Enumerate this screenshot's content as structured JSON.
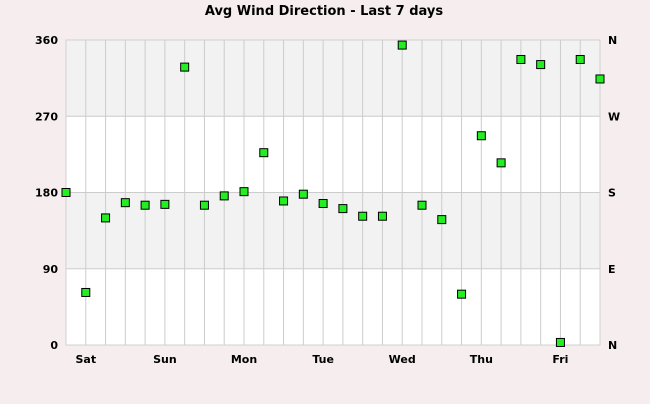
{
  "chart_data": {
    "type": "scatter",
    "title": "Avg Wind Direction - Last 7 days",
    "xlabel": "",
    "ylabel": "",
    "ylim": [
      0,
      360
    ],
    "y_ticks_left": [
      "0",
      "90",
      "180",
      "270",
      "360"
    ],
    "y_ticks_right": [
      "N",
      "E",
      "S",
      "W",
      "N"
    ],
    "x_tick_labels": [
      "Sat",
      "Sun",
      "Mon",
      "Tue",
      "Wed",
      "Thu",
      "Fri"
    ],
    "grid": true,
    "points": [
      {
        "x": 0,
        "y": 180
      },
      {
        "x": 1,
        "y": 62
      },
      {
        "x": 2,
        "y": 150
      },
      {
        "x": 3,
        "y": 168
      },
      {
        "x": 4,
        "y": 165
      },
      {
        "x": 5,
        "y": 166
      },
      {
        "x": 6,
        "y": 328
      },
      {
        "x": 7,
        "y": 165
      },
      {
        "x": 8,
        "y": 176
      },
      {
        "x": 9,
        "y": 181
      },
      {
        "x": 10,
        "y": 227
      },
      {
        "x": 11,
        "y": 170
      },
      {
        "x": 12,
        "y": 178
      },
      {
        "x": 13,
        "y": 167
      },
      {
        "x": 14,
        "y": 161
      },
      {
        "x": 15,
        "y": 152
      },
      {
        "x": 16,
        "y": 152
      },
      {
        "x": 17,
        "y": 354
      },
      {
        "x": 18,
        "y": 165
      },
      {
        "x": 19,
        "y": 148
      },
      {
        "x": 20,
        "y": 60
      },
      {
        "x": 21,
        "y": 247
      },
      {
        "x": 22,
        "y": 215
      },
      {
        "x": 23,
        "y": 337
      },
      {
        "x": 24,
        "y": 331
      },
      {
        "x": 25,
        "y": 3
      },
      {
        "x": 26,
        "y": 337
      },
      {
        "x": 27,
        "y": 314
      }
    ],
    "colors": {
      "background": "#f6eeee",
      "plot_band_light": "#ffffff",
      "plot_band_dark": "#f2f2f2",
      "grid": "#cccccc",
      "marker_fill": "#22ee22",
      "marker_stroke": "#000000"
    }
  }
}
